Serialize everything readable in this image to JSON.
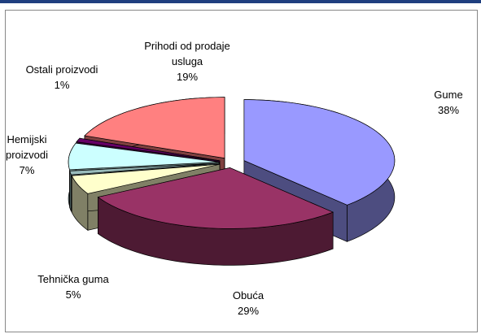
{
  "chart_data": {
    "type": "pie3d",
    "categories": [
      "Gume",
      "Obuća",
      "Tehnička guma",
      null,
      "Hemijski proizvodi",
      "Ostali proizvodi",
      "Prihodi od prodaje usluga"
    ],
    "values": [
      38,
      29,
      5,
      1,
      7,
      1,
      19
    ],
    "value_labels": [
      "38%",
      "29%",
      "5%",
      null,
      "7%",
      "1%",
      "19%"
    ],
    "colors": [
      "#9999ff",
      "#993366",
      "#ffffcc",
      "#99bbbb",
      "#ccffff",
      "#660066",
      "#ff8080"
    ]
  }
}
